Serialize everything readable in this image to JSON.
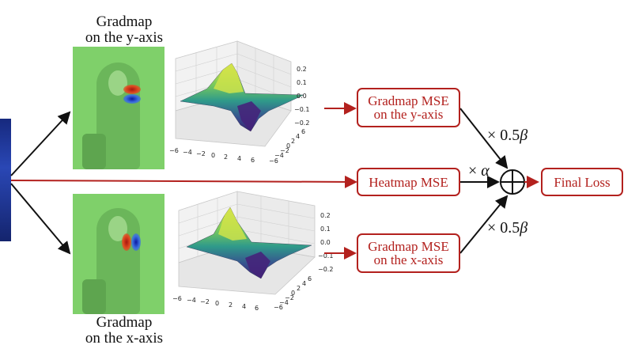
{
  "captions": {
    "top": [
      "Gradmap",
      "on the y-axis"
    ],
    "bottom": [
      "Gradmap",
      "on the x-axis"
    ]
  },
  "boxes": {
    "gradmap_y": [
      "Gradmap MSE",
      "on the y-axis"
    ],
    "heatmap": "Heatmap MSE",
    "gradmap_x": [
      "Gradmap MSE",
      "on the x-axis"
    ],
    "final": "Final Loss"
  },
  "weights": {
    "y": {
      "prefix": "× 0.5",
      "symbol": "β"
    },
    "heat": {
      "prefix": "× ",
      "symbol": "α"
    },
    "x": {
      "prefix": "× 0.5",
      "symbol": "β"
    }
  },
  "plots": {
    "z_ticks": [
      "0.2",
      "0.1",
      "0.0",
      "−0.1",
      "−0.2"
    ],
    "x_ticks": [
      "−6",
      "−4",
      "−2",
      "0",
      "2",
      "4",
      "6"
    ],
    "y_ticks": [
      "−6",
      "−4",
      "−2",
      "0",
      "2",
      "4",
      "6"
    ]
  },
  "colors": {
    "red": "#b3211e",
    "photo_tint": "#7fd06a",
    "input_blue": "#1b2f8a",
    "surface_high": "#e8e84a",
    "surface_mid": "#2f8c8a",
    "surface_low": "#3b1f6e"
  }
}
